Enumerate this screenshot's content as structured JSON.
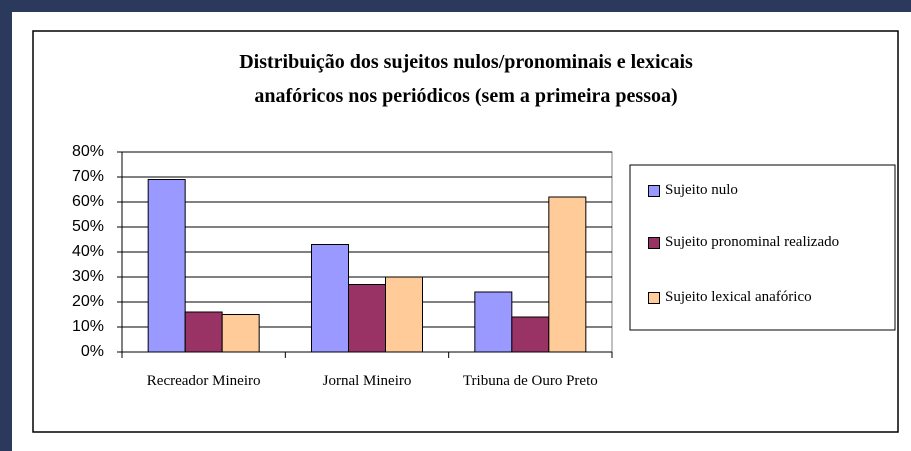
{
  "chart_data": {
    "type": "bar",
    "title": [
      "Distribuição dos sujeitos nulos/pronominais e lexicais",
      "anafóricos nos periódicos (sem a primeira pessoa)"
    ],
    "categories": [
      "Recreador Mineiro",
      "Jornal Mineiro",
      "Tribuna de Ouro Preto"
    ],
    "series": [
      {
        "name": "Sujeito nulo",
        "color": "#9999ff",
        "values": [
          69,
          43,
          24
        ]
      },
      {
        "name": "Sujeito pronominal realizado",
        "color": "#993366",
        "values": [
          16,
          27,
          14
        ]
      },
      {
        "name": "Sujeito lexical anafórico",
        "color": "#ffcc99",
        "values": [
          15,
          30,
          62
        ]
      }
    ],
    "ylim": [
      0,
      80
    ],
    "yticks": [
      {
        "value": 0,
        "label": "0%"
      },
      {
        "value": 10,
        "label": "10%"
      },
      {
        "value": 20,
        "label": "20%"
      },
      {
        "value": 30,
        "label": "30%"
      },
      {
        "value": 40,
        "label": "40%"
      },
      {
        "value": 50,
        "label": "50%"
      },
      {
        "value": 60,
        "label": "60%"
      },
      {
        "value": 70,
        "label": "70%"
      },
      {
        "value": 80,
        "label": "80%"
      }
    ],
    "grid": true,
    "legend": "right"
  }
}
